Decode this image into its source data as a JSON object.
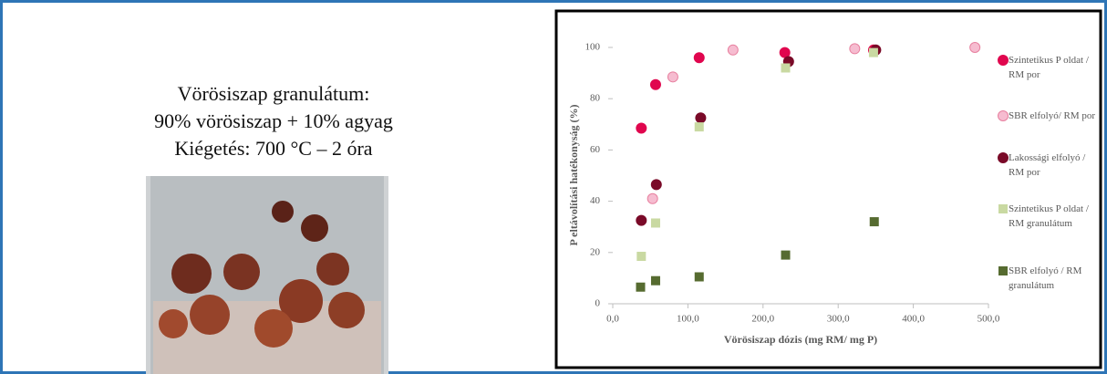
{
  "slide": {
    "lines": [
      "Vörösiszap granulátum:",
      "90% vörösiszap + 10% agyag",
      "Kiégetés: 700 °C – 2 óra"
    ]
  },
  "chart_data": {
    "type": "scatter",
    "y_label": "P eltávolítási hatékonyság (%)",
    "x_label": "Vörösiszap dózis (mg RM/ mg P)",
    "xlim": [
      0,
      500
    ],
    "xticks": [
      {
        "value": 0,
        "label": "0,0"
      },
      {
        "value": 100,
        "label": "100,0"
      },
      {
        "value": 200,
        "label": "200,0"
      },
      {
        "value": 300,
        "label": "300,0"
      },
      {
        "value": 400,
        "label": "400,0"
      },
      {
        "value": 500,
        "label": "500,0"
      }
    ],
    "ylim": [
      0,
      100
    ],
    "yticks": [
      0,
      20,
      40,
      60,
      80,
      100
    ],
    "grid": false,
    "legend": "right",
    "series": [
      {
        "name": "Szintetikus P oldat / RM por",
        "color": "#e0064e",
        "marker": "circle",
        "x": [
          38,
          57,
          115,
          229,
          347
        ],
        "values": [
          68.5,
          85.5,
          96,
          98,
          99
        ]
      },
      {
        "name": "SBR elfolyó/ RM por",
        "color": "#f6bcd0",
        "marker": "circle",
        "x": [
          53,
          80,
          160,
          322,
          482
        ],
        "values": [
          41,
          88.5,
          99,
          99.5,
          100
        ]
      },
      {
        "name": "Lakossági elfolyó / RM por",
        "color": "#7a0a28",
        "marker": "circle",
        "x": [
          38,
          58,
          117,
          234,
          350
        ],
        "values": [
          32.5,
          46.5,
          72.5,
          94.5,
          99
        ]
      },
      {
        "name": "Szintetikus P oldat / RM granulátum",
        "color": "#c9d9a2",
        "marker": "square",
        "x": [
          38,
          57,
          115,
          230,
          347
        ],
        "values": [
          18.5,
          31.5,
          69,
          92,
          98
        ]
      },
      {
        "name": "SBR elfolyó / RM granulátum",
        "color": "#566b30",
        "marker": "square",
        "x": [
          37,
          57,
          115,
          230,
          348
        ],
        "values": [
          6.5,
          9,
          10.5,
          19,
          32
        ]
      }
    ]
  }
}
